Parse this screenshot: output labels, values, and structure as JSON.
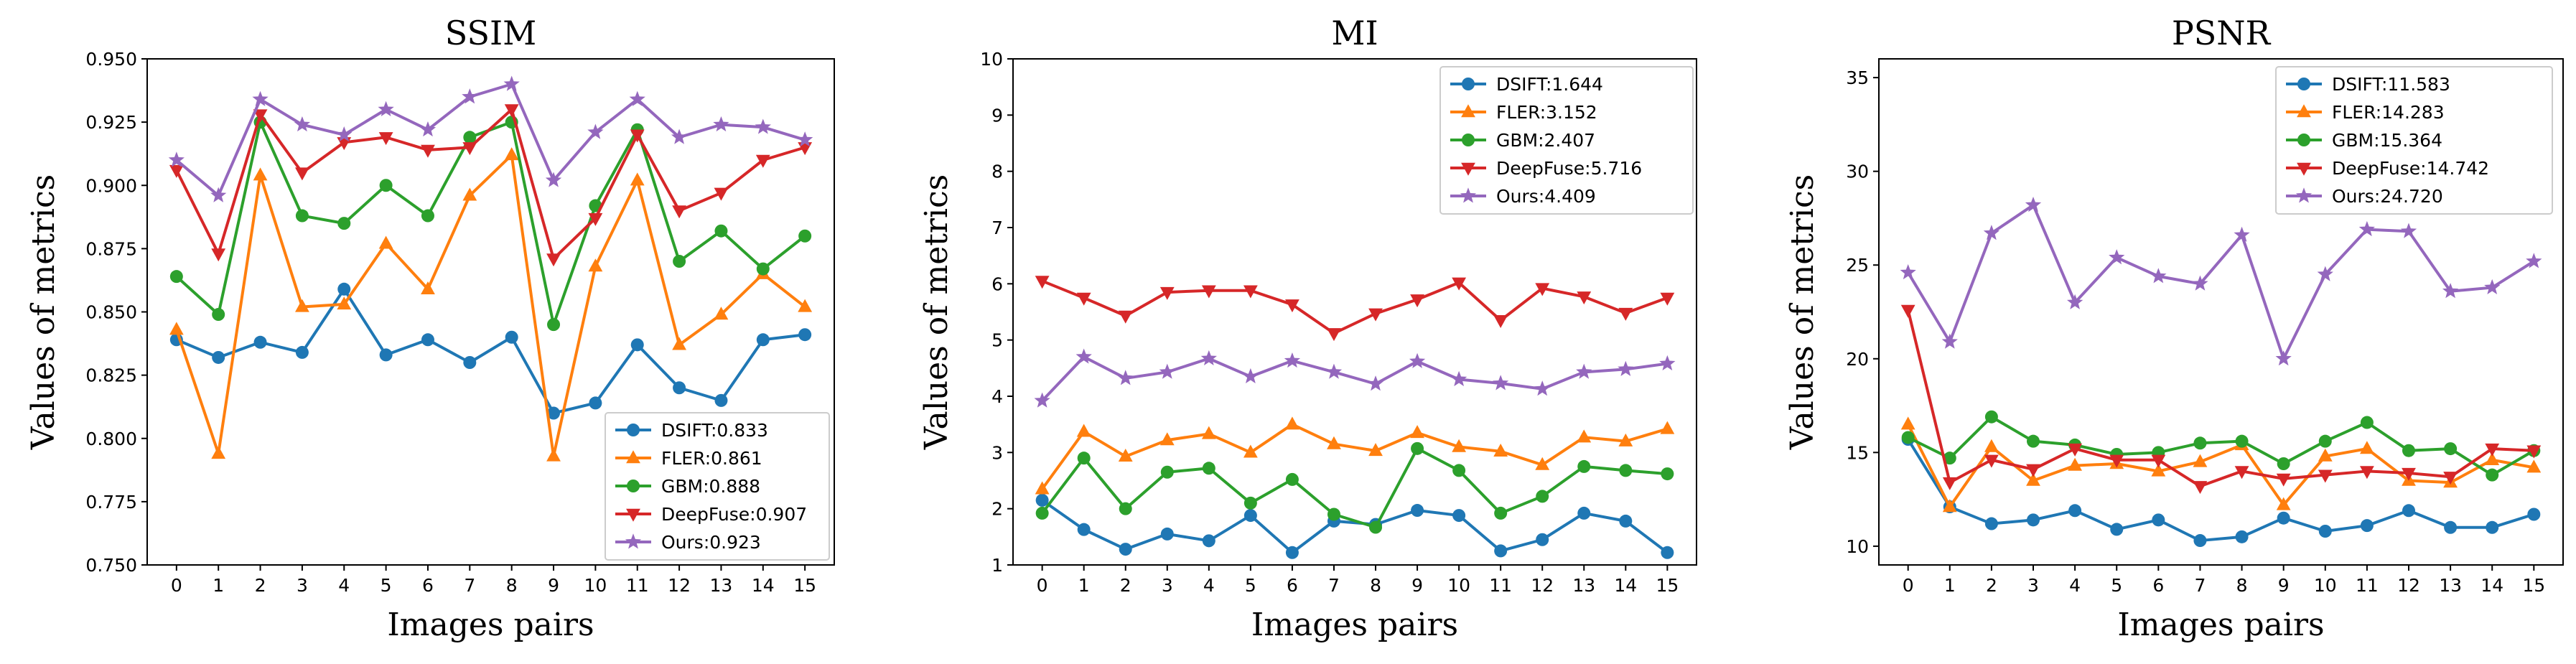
{
  "chart_data": [
    {
      "type": "line",
      "title": "SSIM",
      "xlabel": "Images pairs",
      "ylabel": "Values of metrics",
      "x": [
        0,
        1,
        2,
        3,
        4,
        5,
        6,
        7,
        8,
        9,
        10,
        11,
        12,
        13,
        14,
        15
      ],
      "ylim": [
        0.75,
        0.95
      ],
      "yticks": [
        0.75,
        0.775,
        0.8,
        0.825,
        0.85,
        0.875,
        0.9,
        0.925,
        0.95
      ],
      "ytick_labels": [
        "0.750",
        "0.775",
        "0.800",
        "0.825",
        "0.850",
        "0.875",
        "0.900",
        "0.925",
        "0.950"
      ],
      "legend_position": "lower-right",
      "series": [
        {
          "name": "DSIFT:0.833",
          "color": "#1f77b4",
          "marker": "circle",
          "values": [
            0.839,
            0.832,
            0.838,
            0.834,
            0.859,
            0.833,
            0.839,
            0.83,
            0.84,
            0.81,
            0.814,
            0.837,
            0.82,
            0.815,
            0.839,
            0.841
          ]
        },
        {
          "name": "FLER:0.861",
          "color": "#ff7f0e",
          "marker": "triangle-up",
          "values": [
            0.843,
            0.794,
            0.904,
            0.852,
            0.853,
            0.877,
            0.859,
            0.896,
            0.912,
            0.793,
            0.868,
            0.902,
            0.837,
            0.849,
            0.865,
            0.852
          ]
        },
        {
          "name": "GBM:0.888",
          "color": "#2ca02c",
          "marker": "circle",
          "values": [
            0.864,
            0.849,
            0.925,
            0.888,
            0.885,
            0.9,
            0.888,
            0.919,
            0.925,
            0.845,
            0.892,
            0.922,
            0.87,
            0.882,
            0.867,
            0.88
          ]
        },
        {
          "name": "DeepFuse:0.907",
          "color": "#d62728",
          "marker": "triangle-down",
          "values": [
            0.906,
            0.873,
            0.928,
            0.905,
            0.917,
            0.919,
            0.914,
            0.915,
            0.93,
            0.871,
            0.887,
            0.92,
            0.89,
            0.897,
            0.91,
            0.915
          ]
        },
        {
          "name": "Ours:0.923",
          "color": "#9467bd",
          "marker": "star",
          "values": [
            0.91,
            0.896,
            0.934,
            0.924,
            0.92,
            0.93,
            0.922,
            0.935,
            0.94,
            0.902,
            0.921,
            0.934,
            0.919,
            0.924,
            0.923,
            0.918
          ]
        }
      ]
    },
    {
      "type": "line",
      "title": "MI",
      "xlabel": "Images pairs",
      "ylabel": "Values of metrics",
      "x": [
        0,
        1,
        2,
        3,
        4,
        5,
        6,
        7,
        8,
        9,
        10,
        11,
        12,
        13,
        14,
        15
      ],
      "ylim": [
        1,
        10
      ],
      "yticks": [
        1,
        2,
        3,
        4,
        5,
        6,
        7,
        8,
        9,
        10
      ],
      "ytick_labels": [
        "1",
        "2",
        "3",
        "4",
        "5",
        "6",
        "7",
        "8",
        "9",
        "10"
      ],
      "legend_position": "upper-right",
      "series": [
        {
          "name": "DSIFT:1.644",
          "color": "#1f77b4",
          "marker": "circle",
          "values": [
            2.15,
            1.63,
            1.28,
            1.55,
            1.43,
            1.88,
            1.22,
            1.78,
            1.72,
            1.97,
            1.88,
            1.25,
            1.45,
            1.92,
            1.78,
            1.22
          ]
        },
        {
          "name": "FLER:3.152",
          "color": "#ff7f0e",
          "marker": "triangle-up",
          "values": [
            2.35,
            3.37,
            2.93,
            3.22,
            3.33,
            3.0,
            3.5,
            3.15,
            3.03,
            3.35,
            3.1,
            3.02,
            2.78,
            3.27,
            3.2,
            3.42
          ]
        },
        {
          "name": "GBM:2.407",
          "color": "#2ca02c",
          "marker": "circle",
          "values": [
            1.92,
            2.9,
            2.0,
            2.65,
            2.72,
            2.1,
            2.52,
            1.9,
            1.67,
            3.07,
            2.68,
            1.92,
            2.22,
            2.75,
            2.68,
            2.62
          ]
        },
        {
          "name": "DeepFuse:5.716",
          "color": "#d62728",
          "marker": "triangle-down",
          "values": [
            6.05,
            5.75,
            5.43,
            5.85,
            5.88,
            5.88,
            5.63,
            5.12,
            5.47,
            5.72,
            6.02,
            5.35,
            5.92,
            5.77,
            5.48,
            5.75
          ]
        },
        {
          "name": "Ours:4.409",
          "color": "#9467bd",
          "marker": "star",
          "values": [
            3.92,
            4.7,
            4.32,
            4.43,
            4.67,
            4.35,
            4.63,
            4.43,
            4.22,
            4.62,
            4.3,
            4.23,
            4.13,
            4.43,
            4.48,
            4.58
          ]
        }
      ]
    },
    {
      "type": "line",
      "title": "PSNR",
      "xlabel": "Images pairs",
      "ylabel": "Values of metrics",
      "x": [
        0,
        1,
        2,
        3,
        4,
        5,
        6,
        7,
        8,
        9,
        10,
        11,
        12,
        13,
        14,
        15
      ],
      "ylim": [
        9,
        36
      ],
      "yticks": [
        10,
        15,
        20,
        25,
        30,
        35
      ],
      "ytick_labels": [
        "10",
        "15",
        "20",
        "25",
        "30",
        "35"
      ],
      "legend_position": "upper-right",
      "series": [
        {
          "name": "DSIFT:11.583",
          "color": "#1f77b4",
          "marker": "circle",
          "values": [
            15.7,
            12.1,
            11.2,
            11.4,
            11.9,
            10.9,
            11.4,
            10.3,
            10.5,
            11.5,
            10.8,
            11.1,
            11.9,
            11.0,
            11.0,
            11.7
          ]
        },
        {
          "name": "FLER:14.283",
          "color": "#ff7f0e",
          "marker": "triangle-up",
          "values": [
            16.5,
            12.1,
            15.3,
            13.5,
            14.3,
            14.4,
            14.0,
            14.5,
            15.4,
            12.2,
            14.8,
            15.2,
            13.5,
            13.4,
            14.6,
            14.2
          ]
        },
        {
          "name": "GBM:15.364",
          "color": "#2ca02c",
          "marker": "circle",
          "values": [
            15.8,
            14.7,
            16.9,
            15.6,
            15.4,
            14.9,
            15.0,
            15.5,
            15.6,
            14.4,
            15.6,
            16.6,
            15.1,
            15.2,
            13.8,
            15.1
          ]
        },
        {
          "name": "DeepFuse:14.742",
          "color": "#d62728",
          "marker": "triangle-down",
          "values": [
            22.6,
            13.4,
            14.6,
            14.1,
            15.2,
            14.6,
            14.6,
            13.2,
            14.0,
            13.6,
            13.8,
            14.0,
            13.9,
            13.7,
            15.2,
            15.1
          ]
        },
        {
          "name": "Ours:24.720",
          "color": "#9467bd",
          "marker": "star",
          "values": [
            24.6,
            20.9,
            26.7,
            28.2,
            23.0,
            25.4,
            24.4,
            24.0,
            26.6,
            20.0,
            24.5,
            26.9,
            26.8,
            23.6,
            23.8,
            25.2
          ]
        }
      ]
    }
  ]
}
